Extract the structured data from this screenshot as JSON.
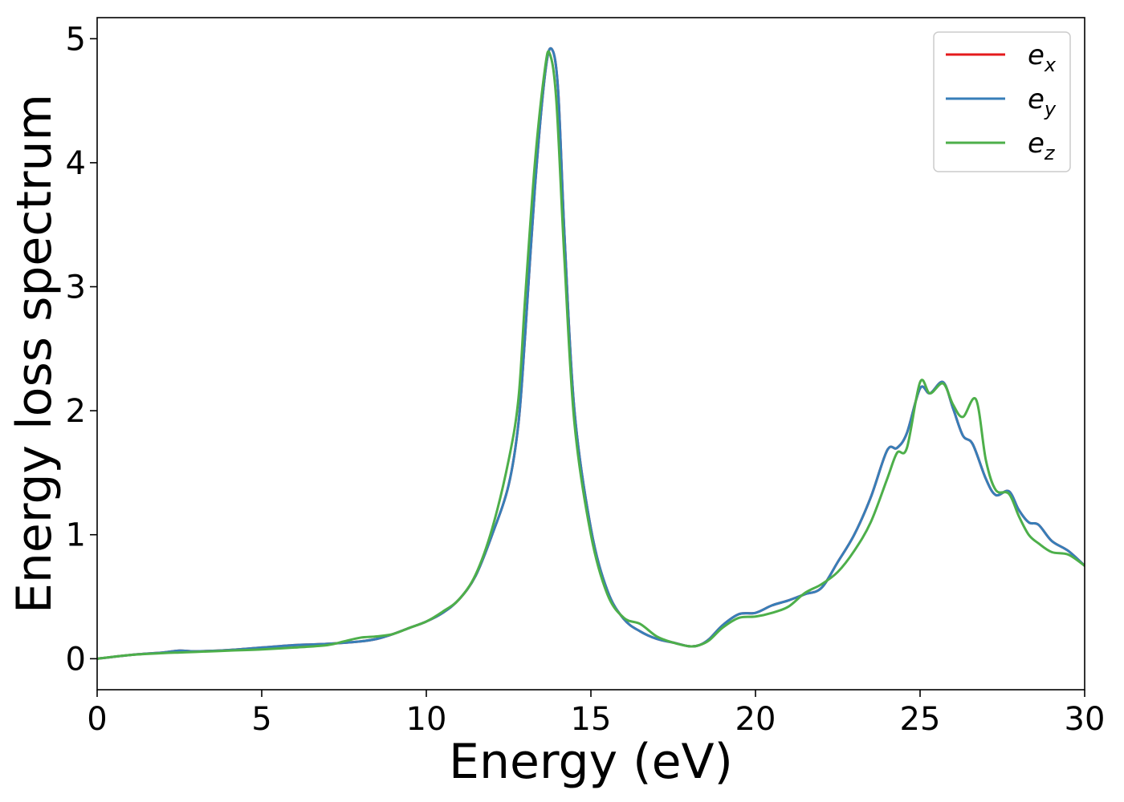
{
  "chart_data": {
    "type": "line",
    "xlabel": "Energy (eV)",
    "ylabel": "Energy loss spectrum",
    "xlim": [
      0,
      30
    ],
    "ylim": [
      -0.25,
      5.17
    ],
    "xticks": [
      0,
      5,
      10,
      15,
      20,
      25,
      30
    ],
    "yticks": [
      0,
      1,
      2,
      3,
      4,
      5
    ],
    "grid": false,
    "legend_position": "top-right",
    "series": [
      {
        "name": "e_x",
        "legend_base": "e",
        "legend_sub": "x",
        "color": "#e41a1c",
        "x": [
          0,
          1,
          2,
          2.5,
          3,
          4,
          5,
          6,
          7,
          8,
          8.5,
          9,
          9.5,
          10,
          10.5,
          11,
          11.5,
          12,
          12.5,
          12.8,
          13,
          13.3,
          13.6,
          13.8,
          14,
          14.2,
          14.5,
          15,
          15.5,
          16,
          16.5,
          17,
          17.5,
          18,
          18.3,
          18.6,
          19,
          19.5,
          20,
          20.5,
          21,
          21.5,
          22,
          22.5,
          23,
          23.5,
          24,
          24.3,
          24.6,
          25,
          25.3,
          25.7,
          26,
          26.3,
          26.6,
          27,
          27.3,
          27.7,
          28,
          28.3,
          28.6,
          29,
          29.5,
          30
        ],
        "y": [
          0,
          0.03,
          0.05,
          0.065,
          0.06,
          0.07,
          0.09,
          0.11,
          0.12,
          0.14,
          0.16,
          0.2,
          0.25,
          0.3,
          0.37,
          0.48,
          0.67,
          1.0,
          1.4,
          1.9,
          2.6,
          3.8,
          4.7,
          4.92,
          4.6,
          3.4,
          2.0,
          1.05,
          0.55,
          0.32,
          0.22,
          0.16,
          0.13,
          0.1,
          0.11,
          0.16,
          0.27,
          0.36,
          0.37,
          0.43,
          0.47,
          0.52,
          0.57,
          0.78,
          1.0,
          1.3,
          1.68,
          1.7,
          1.82,
          2.18,
          2.14,
          2.23,
          2.02,
          1.8,
          1.73,
          1.45,
          1.32,
          1.35,
          1.2,
          1.1,
          1.08,
          0.95,
          0.87,
          0.75
        ]
      },
      {
        "name": "e_y",
        "legend_base": "e",
        "legend_sub": "y",
        "color": "#377eb8",
        "x": [
          0,
          1,
          2,
          2.5,
          3,
          4,
          5,
          6,
          7,
          8,
          8.5,
          9,
          9.5,
          10,
          10.5,
          11,
          11.5,
          12,
          12.5,
          12.8,
          13,
          13.3,
          13.6,
          13.8,
          14,
          14.2,
          14.5,
          15,
          15.5,
          16,
          16.5,
          17,
          17.5,
          18,
          18.3,
          18.6,
          19,
          19.5,
          20,
          20.5,
          21,
          21.5,
          22,
          22.5,
          23,
          23.5,
          24,
          24.3,
          24.6,
          25,
          25.3,
          25.7,
          26,
          26.3,
          26.6,
          27,
          27.3,
          27.7,
          28,
          28.3,
          28.6,
          29,
          29.5,
          30
        ],
        "y": [
          0,
          0.03,
          0.05,
          0.065,
          0.06,
          0.07,
          0.09,
          0.11,
          0.12,
          0.14,
          0.16,
          0.2,
          0.25,
          0.3,
          0.37,
          0.48,
          0.67,
          1.0,
          1.4,
          1.9,
          2.6,
          3.8,
          4.7,
          4.92,
          4.6,
          3.4,
          2.0,
          1.05,
          0.55,
          0.32,
          0.22,
          0.16,
          0.13,
          0.1,
          0.11,
          0.16,
          0.27,
          0.36,
          0.37,
          0.43,
          0.47,
          0.52,
          0.57,
          0.78,
          1.0,
          1.3,
          1.68,
          1.7,
          1.82,
          2.18,
          2.14,
          2.23,
          2.02,
          1.8,
          1.73,
          1.45,
          1.32,
          1.35,
          1.2,
          1.1,
          1.08,
          0.95,
          0.87,
          0.75
        ]
      },
      {
        "name": "e_z",
        "legend_base": "e",
        "legend_sub": "z",
        "color": "#4daf4a",
        "x": [
          0,
          1,
          2,
          2.5,
          3,
          4,
          5,
          6,
          7,
          7.5,
          8,
          8.5,
          9,
          9.5,
          10,
          10.5,
          11,
          11.5,
          12,
          12.5,
          12.8,
          13,
          13.3,
          13.6,
          13.75,
          13.95,
          14.2,
          14.5,
          15,
          15.5,
          16,
          16.5,
          17,
          17.5,
          18,
          18.3,
          18.6,
          19,
          19.5,
          20,
          20.5,
          21,
          21.5,
          22,
          22.5,
          23,
          23.5,
          24,
          24.3,
          24.6,
          25,
          25.3,
          25.7,
          26,
          26.3,
          26.7,
          27,
          27.3,
          27.7,
          28,
          28.3,
          28.6,
          29,
          29.5,
          30
        ],
        "y": [
          0,
          0.03,
          0.045,
          0.05,
          0.055,
          0.065,
          0.075,
          0.09,
          0.11,
          0.14,
          0.17,
          0.18,
          0.2,
          0.25,
          0.3,
          0.38,
          0.48,
          0.68,
          1.05,
          1.6,
          2.1,
          2.9,
          4.0,
          4.75,
          4.88,
          4.5,
          3.2,
          1.9,
          1.0,
          0.52,
          0.33,
          0.28,
          0.18,
          0.13,
          0.1,
          0.11,
          0.15,
          0.25,
          0.33,
          0.34,
          0.37,
          0.42,
          0.53,
          0.6,
          0.7,
          0.87,
          1.1,
          1.45,
          1.66,
          1.7,
          2.23,
          2.14,
          2.22,
          2.05,
          1.95,
          2.09,
          1.6,
          1.36,
          1.33,
          1.15,
          1.0,
          0.93,
          0.86,
          0.84,
          0.75
        ]
      }
    ]
  }
}
